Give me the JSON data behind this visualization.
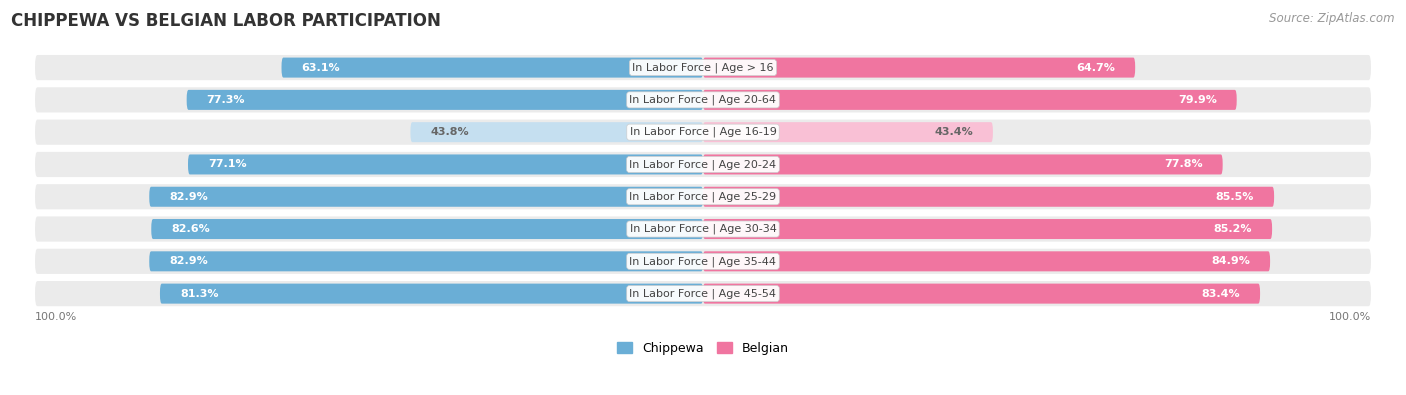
{
  "title": "CHIPPEWA VS BELGIAN LABOR PARTICIPATION",
  "source": "Source: ZipAtlas.com",
  "categories": [
    "In Labor Force | Age > 16",
    "In Labor Force | Age 20-64",
    "In Labor Force | Age 16-19",
    "In Labor Force | Age 20-24",
    "In Labor Force | Age 25-29",
    "In Labor Force | Age 30-34",
    "In Labor Force | Age 35-44",
    "In Labor Force | Age 45-54"
  ],
  "chippewa_values": [
    63.1,
    77.3,
    43.8,
    77.1,
    82.9,
    82.6,
    82.9,
    81.3
  ],
  "belgian_values": [
    64.7,
    79.9,
    43.4,
    77.8,
    85.5,
    85.2,
    84.9,
    83.4
  ],
  "chippewa_color_full": "#6aaed6",
  "chippewa_color_light": "#c5dff0",
  "belgian_color_full": "#f075a0",
  "belgian_color_light": "#f9c0d5",
  "row_bg": "#ebebeb",
  "text_color_white": "#ffffff",
  "text_color_dark": "#666666",
  "label_fontsize": 8.0,
  "value_fontsize": 8.0,
  "title_fontsize": 12,
  "legend_fontsize": 9,
  "axis_label_fontsize": 8,
  "max_val": 100.0
}
